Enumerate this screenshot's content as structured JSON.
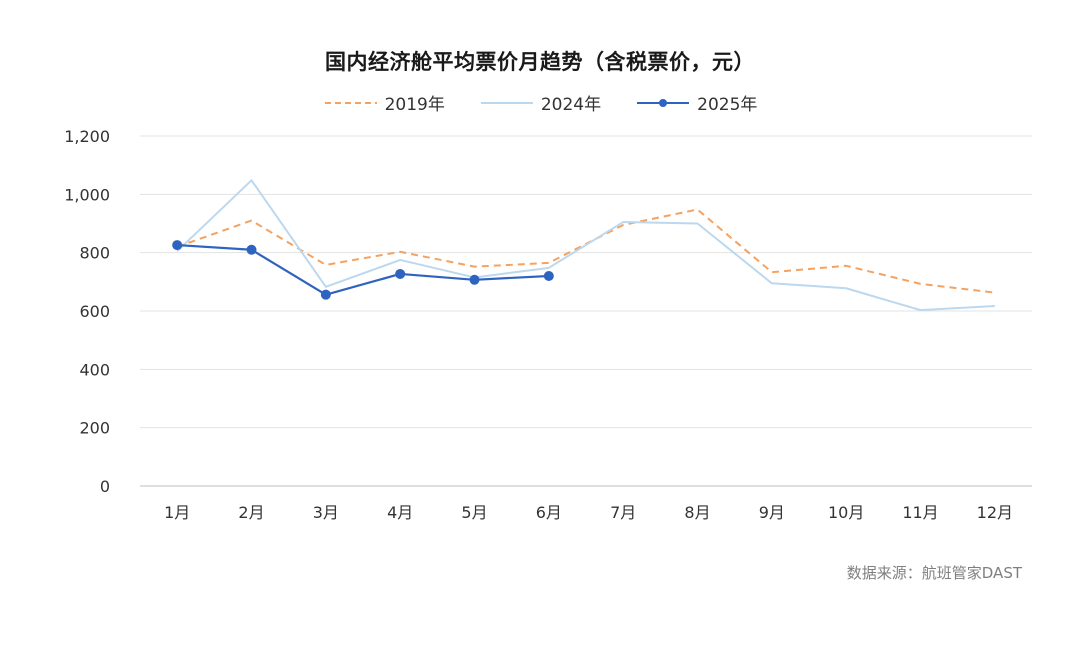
{
  "chart_data": {
    "type": "line",
    "title": "国内经济舱平均票价月趋势（含税票价，元）",
    "categories": [
      "1月",
      "2月",
      "3月",
      "4月",
      "5月",
      "6月",
      "7月",
      "8月",
      "9月",
      "10月",
      "11月",
      "12月"
    ],
    "ylim": [
      0,
      1200
    ],
    "yticks": [
      0,
      200,
      400,
      600,
      800,
      1000,
      1200
    ],
    "ytick_labels": [
      "0",
      "200",
      "400",
      "600",
      "800",
      "1,000",
      "1,200"
    ],
    "grid": true,
    "legend_position": "top",
    "series": [
      {
        "name": "2019年",
        "color": "#f4a261",
        "style": "dashed",
        "values": [
          820,
          910,
          758,
          803,
          752,
          765,
          895,
          948,
          733,
          755,
          693,
          663
        ]
      },
      {
        "name": "2024年",
        "color": "#bcd8ef",
        "style": "solid",
        "values": [
          805,
          1048,
          683,
          775,
          715,
          748,
          905,
          900,
          695,
          678,
          603,
          617
        ]
      },
      {
        "name": "2025年",
        "color": "#2e63c0",
        "style": "solid-markers",
        "values": [
          826,
          810,
          656,
          727,
          707,
          720,
          null,
          null,
          null,
          null,
          null,
          null
        ]
      }
    ]
  },
  "source": "数据来源：航班管家DAST"
}
